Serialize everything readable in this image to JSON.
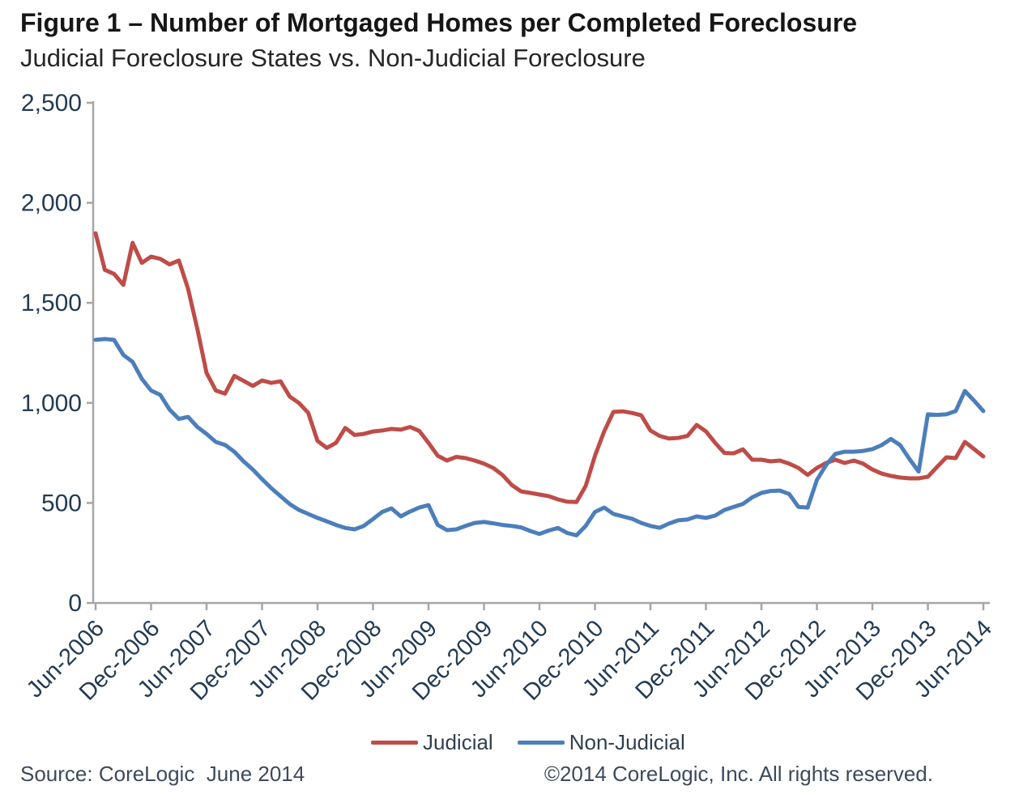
{
  "header": {
    "title": "Figure 1 – Number of Mortgaged Homes per Completed Foreclosure",
    "subtitle": "Judicial Foreclosure States vs. Non-Judicial Foreclosure"
  },
  "legend": {
    "items": [
      {
        "label": "Judicial",
        "color": "#be4c48"
      },
      {
        "label": "Non-Judicial",
        "color": "#4c7ebb"
      }
    ]
  },
  "footer": {
    "source": "Source: CoreLogic  June 2014",
    "copyright": "©2014 CoreLogic, Inc. All rights reserved."
  },
  "chart_data": {
    "type": "line",
    "title": "Figure 1 – Number of Mortgaged Homes per Completed Foreclosure",
    "subtitle": "Judicial Foreclosure States vs. Non-Judicial Foreclosure",
    "x_interval": "monthly",
    "x_start": "Jun-2006",
    "x_end": "Jun-2014",
    "x_tick_labels": [
      "Jun-2006",
      "Dec-2006",
      "Jun-2007",
      "Dec-2007",
      "Jun-2008",
      "Dec-2008",
      "Jun-2009",
      "Dec-2009",
      "Jun-2010",
      "Dec-2010",
      "Jun-2011",
      "Dec-2011",
      "Jun-2012",
      "Dec-2012",
      "Jun-2013",
      "Dec-2013",
      "Jun-2014"
    ],
    "ylim": [
      0,
      2500
    ],
    "y_ticks": [
      0,
      500,
      1000,
      1500,
      2000,
      2500
    ],
    "y_tick_labels": [
      "0",
      "500",
      "1,000",
      "1,500",
      "2,000",
      "2,500"
    ],
    "grid": false,
    "legend_position": "bottom",
    "axis_color": "#a6a6a6",
    "tick_label_color": "#243b53",
    "series": [
      {
        "name": "Judicial",
        "color": "#be4c48",
        "values": [
          1848,
          1665,
          1645,
          1590,
          1800,
          1700,
          1731,
          1720,
          1692,
          1712,
          1570,
          1370,
          1150,
          1062,
          1046,
          1135,
          1110,
          1085,
          1112,
          1100,
          1108,
          1031,
          999,
          950,
          810,
          775,
          800,
          875,
          840,
          845,
          857,
          862,
          870,
          866,
          880,
          860,
          800,
          736,
          712,
          730,
          724,
          712,
          696,
          675,
          640,
          590,
          558,
          550,
          542,
          534,
          518,
          506,
          505,
          585,
          735,
          858,
          955,
          958,
          950,
          938,
          862,
          835,
          822,
          825,
          835,
          890,
          858,
          800,
          750,
          748,
          768,
          716,
          716,
          708,
          712,
          696,
          675,
          640,
          675,
          700,
          716,
          700,
          712,
          696,
          667,
          647,
          635,
          627,
          623,
          623,
          631,
          680,
          728,
          724,
          805,
          769,
          732
        ]
      },
      {
        "name": "Non-Judicial",
        "color": "#4c7ebb",
        "values": [
          1315,
          1319,
          1315,
          1240,
          1205,
          1120,
          1062,
          1040,
          967,
          920,
          930,
          880,
          845,
          805,
          790,
          756,
          708,
          667,
          619,
          574,
          534,
          494,
          465,
          445,
          425,
          408,
          390,
          375,
          368,
          385,
          420,
          455,
          473,
          433,
          457,
          477,
          489,
          390,
          364,
          368,
          385,
          400,
          405,
          398,
          390,
          385,
          378,
          360,
          345,
          362,
          375,
          350,
          338,
          385,
          455,
          477,
          445,
          433,
          421,
          400,
          385,
          376,
          397,
          413,
          417,
          433,
          425,
          437,
          465,
          480,
          495,
          528,
          550,
          560,
          562,
          545,
          480,
          477,
          615,
          690,
          745,
          756,
          756,
          760,
          769,
          789,
          820,
          789,
          720,
          657,
          943,
          940,
          943,
          959,
          1060,
          1011,
          959
        ]
      }
    ]
  }
}
